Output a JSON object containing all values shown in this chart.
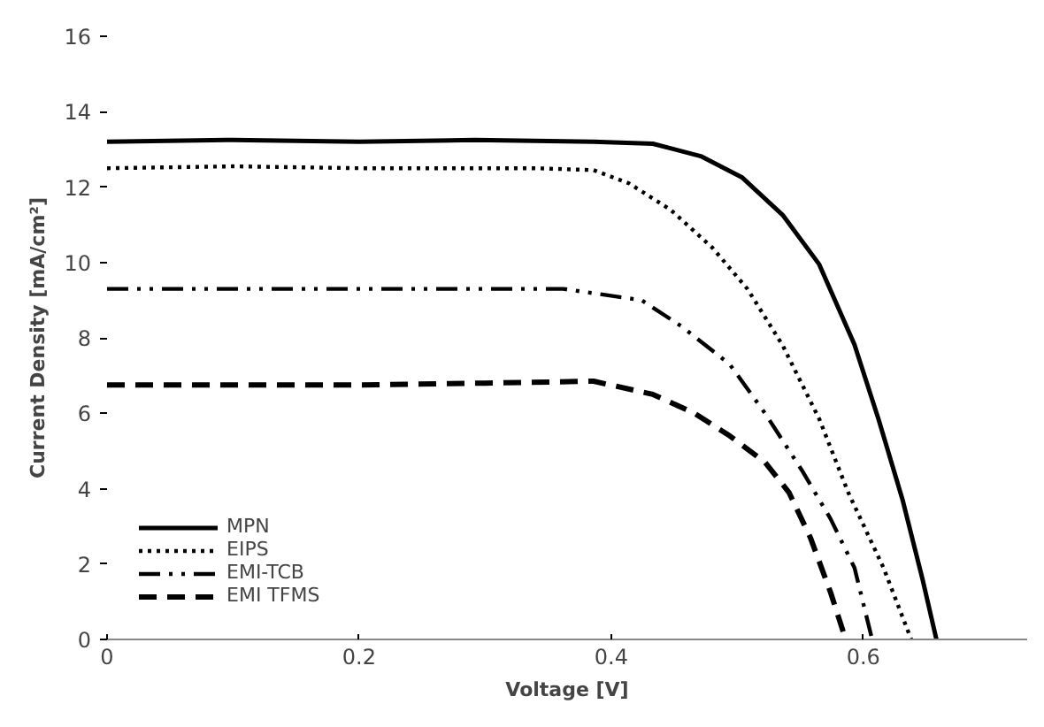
{
  "chart_data": {
    "type": "line",
    "xlabel": "Voltage [V]",
    "ylabel": "Current Density [mA/cm²]",
    "xlim": [
      0,
      0.73
    ],
    "ylim": [
      0,
      16
    ],
    "xticks": [
      0,
      0.2,
      0.4,
      0.6
    ],
    "yticks": [
      0,
      2,
      4,
      6,
      8,
      10,
      12,
      14,
      16
    ],
    "grid": false,
    "legend": "bottom left",
    "marker": "none",
    "series": [
      {
        "name": "MPN",
        "color": "#000000",
        "line_style": "solid",
        "x": [
          0,
          0.1,
          0.2,
          0.292,
          0.386,
          0.433,
          0.471,
          0.504,
          0.536,
          0.565,
          0.593,
          0.612,
          0.631,
          0.647,
          0.658
        ],
        "values": [
          13.2,
          13.25,
          13.2,
          13.25,
          13.2,
          13.15,
          12.82,
          12.25,
          11.26,
          9.95,
          7.82,
          5.85,
          3.72,
          1.59,
          0
        ]
      },
      {
        "name": "EIPS",
        "color": "#000000",
        "line_style": "dotted",
        "x": [
          0,
          0.1,
          0.2,
          0.339,
          0.386,
          0.414,
          0.447,
          0.48,
          0.508,
          0.536,
          0.565,
          0.588,
          0.616,
          0.638
        ],
        "values": [
          12.5,
          12.55,
          12.5,
          12.5,
          12.45,
          12.1,
          11.4,
          10.4,
          9.3,
          7.8,
          5.85,
          3.9,
          1.9,
          0
        ]
      },
      {
        "name": "EMI-TCB",
        "color": "#000000",
        "line_style": "dashdot",
        "x": [
          0,
          0.1,
          0.2,
          0.362,
          0.424,
          0.456,
          0.494,
          0.522,
          0.551,
          0.574,
          0.593,
          0.607
        ],
        "values": [
          9.3,
          9.3,
          9.3,
          9.3,
          9.0,
          8.3,
          7.3,
          6.0,
          4.5,
          3.2,
          1.9,
          0
        ]
      },
      {
        "name": "EMI TFMS",
        "color": "#000000",
        "line_style": "dashed",
        "x": [
          0,
          0.1,
          0.2,
          0.3,
          0.386,
          0.433,
          0.466,
          0.494,
          0.522,
          0.541,
          0.558,
          0.574,
          0.586
        ],
        "values": [
          6.75,
          6.75,
          6.75,
          6.8,
          6.85,
          6.5,
          6.0,
          5.4,
          4.7,
          3.9,
          2.7,
          1.25,
          0
        ]
      }
    ]
  }
}
